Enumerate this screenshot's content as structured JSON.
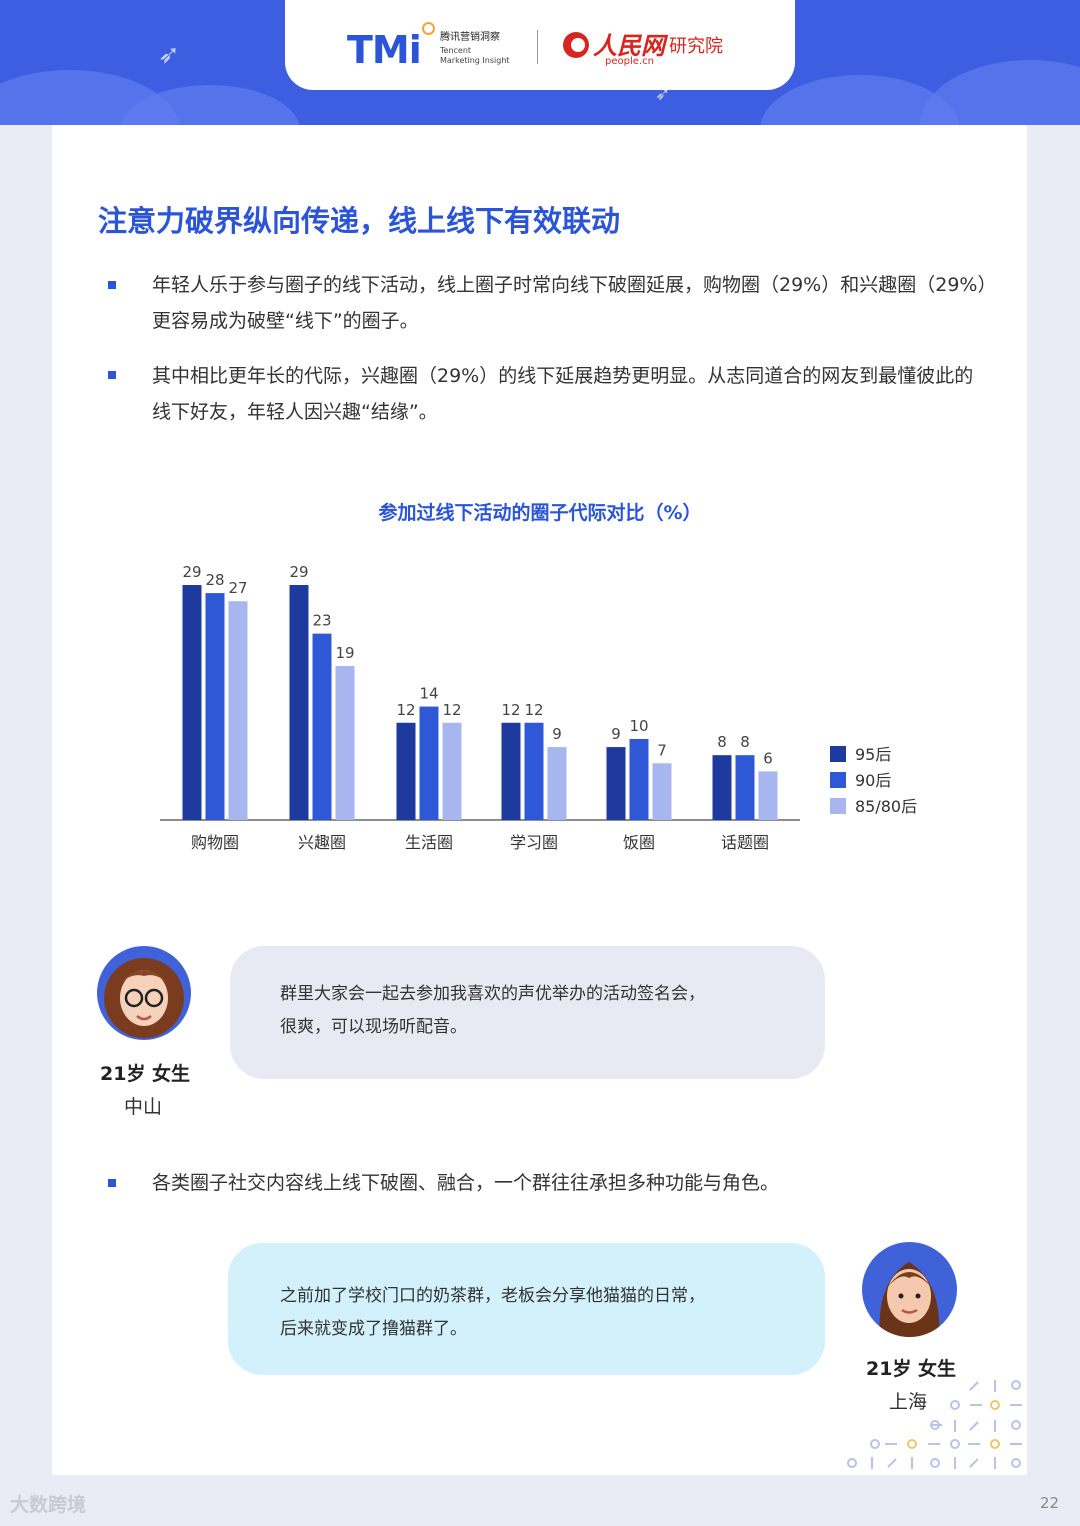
{
  "header": {
    "tmi_logo": "TMi",
    "tmi_cn": "腾讯营销洞察",
    "tmi_en_line1": "Tencent",
    "tmi_en_line2": "Marketing Insight",
    "people_logo": "人民网",
    "people_domain": "people.cn",
    "people_institute": "研究院"
  },
  "title": "注意力破界纵向传递，线上线下有效联动",
  "bullets": [
    "年轻人乐于参与圈子的线下活动，线上圈子时常向线下破圈延展，购物圈（29%）和兴趣圈（29%）更容易成为破壁“线下”的圈子。",
    "其中相比更年长的代际，兴趣圈（29%）的线下延展趋势更明显。从志同道合的网友到最懂彼此的线下好友，年轻人因兴趣“结缘”。",
    "各类圈子社交内容线上线下破圈、融合，一个群往往承担多种功能与角色。"
  ],
  "chart_data": {
    "type": "bar",
    "title": "参加过线下活动的圈子代际对比（%）",
    "categories": [
      "购物圈",
      "兴趣圈",
      "生活圈",
      "学习圈",
      "饭圈",
      "话题圈"
    ],
    "series": [
      {
        "name": "95后",
        "color": "#1e3a9e",
        "values": [
          29,
          29,
          12,
          12,
          9,
          8
        ]
      },
      {
        "name": "90后",
        "color": "#2f58d6",
        "values": [
          28,
          23,
          14,
          12,
          10,
          8
        ]
      },
      {
        "name": "85/80后",
        "color": "#a7b6ef",
        "values": [
          27,
          19,
          12,
          9,
          7,
          6
        ]
      }
    ],
    "ylim": [
      0,
      30
    ],
    "legend": "right",
    "grid": false
  },
  "quotes": [
    {
      "text_line1": "群里大家会一起去参加我喜欢的声优举办的活动签名会，",
      "text_line2": "很爽，可以现场听配音。",
      "age_gender": "21岁 女生",
      "city": "中山"
    },
    {
      "text_line1": "之前加了学校门口的奶茶群，老板会分享他猫猫的日常，",
      "text_line2": "后来就变成了撸猫群了。",
      "age_gender": "21岁 女生",
      "city": "上海"
    }
  ],
  "page_number": "22",
  "watermark": "大数跨境"
}
